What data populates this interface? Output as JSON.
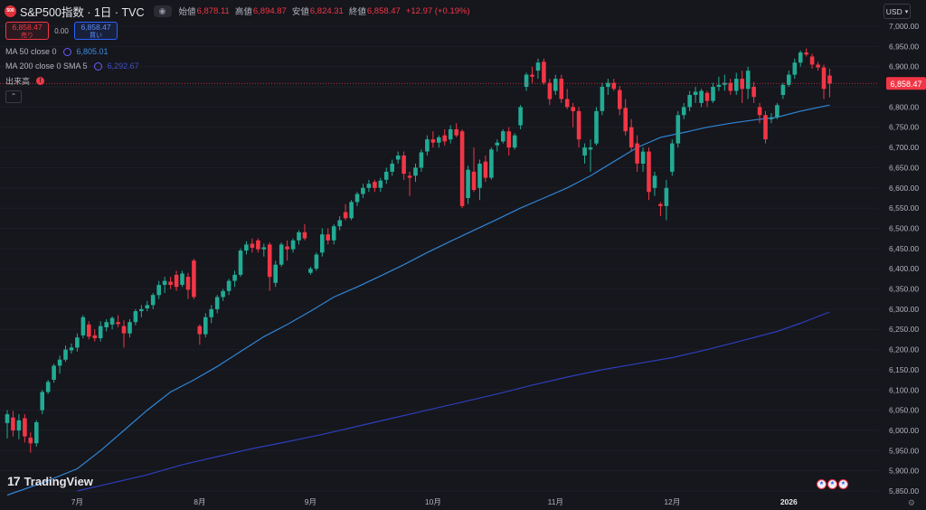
{
  "header": {
    "symbol": "S&P500指数 · 1日 · TVC",
    "logo_text": "500",
    "open_label": "始値",
    "open": "6,878.11",
    "high_label": "高値",
    "high": "6,894.87",
    "low_label": "安値",
    "low": "6,824.31",
    "close_label": "終値",
    "close": "6,858.47",
    "change": "+12.97 (+0.19%)"
  },
  "order": {
    "sell_price": "6,858.47",
    "sell_label": "売り",
    "spread": "0.00",
    "buy_price": "6,858.47",
    "buy_label": "買い"
  },
  "indicators": {
    "ma50_label": "MA 50 close 0",
    "ma50_value": "6,805.01",
    "ma200_label": "MA 200 close 0 SMA 5",
    "ma200_value": "6,292.67",
    "volume_label": "出来高",
    "volume_warning": "!"
  },
  "currency": "USD",
  "watermark": "TradingView",
  "colors": {
    "up": "#22ab94",
    "down": "#f23645",
    "ma50": "#2e86d6",
    "ma200": "#2c3fb8",
    "background": "#16161d",
    "last_price": "#f23645"
  },
  "chart_data": {
    "type": "candlestick",
    "y_axis_ticks": [
      "7,000.00",
      "6,950.00",
      "6,900.00",
      "6,850.00",
      "6,800.00",
      "6,750.00",
      "6,700.00",
      "6,650.00",
      "6,600.00",
      "6,550.00",
      "6,500.00",
      "6,450.00",
      "6,400.00",
      "6,350.00",
      "6,300.00",
      "6,250.00",
      "6,200.00",
      "6,150.00",
      "6,100.00",
      "6,050.00",
      "6,000.00",
      "5,950.00",
      "5,900.00",
      "5,850.00"
    ],
    "ylim": [
      5840,
      7015
    ],
    "x_axis_labels": [
      "7月",
      "8月",
      "9月",
      "10月",
      "11月",
      "12月",
      "2026"
    ],
    "x_label_index": [
      12,
      33,
      52,
      73,
      94,
      114,
      134
    ],
    "last_price_label": "6,858.47",
    "last_price": 6858.47,
    "candles": [
      {
        "o": 6018,
        "h": 6050,
        "l": 5980,
        "c": 6040
      },
      {
        "o": 6032,
        "h": 6048,
        "l": 5985,
        "c": 6000
      },
      {
        "o": 6000,
        "h": 6040,
        "l": 5978,
        "c": 6025
      },
      {
        "o": 6030,
        "h": 6040,
        "l": 5970,
        "c": 5985
      },
      {
        "o": 5982,
        "h": 5995,
        "l": 5945,
        "c": 5968
      },
      {
        "o": 5968,
        "h": 6025,
        "l": 5960,
        "c": 6020
      },
      {
        "o": 6050,
        "h": 6100,
        "l": 6040,
        "c": 6095
      },
      {
        "o": 6095,
        "h": 6125,
        "l": 6090,
        "c": 6120
      },
      {
        "o": 6125,
        "h": 6165,
        "l": 6118,
        "c": 6160
      },
      {
        "o": 6160,
        "h": 6185,
        "l": 6140,
        "c": 6175
      },
      {
        "o": 6175,
        "h": 6210,
        "l": 6170,
        "c": 6200
      },
      {
        "o": 6198,
        "h": 6215,
        "l": 6190,
        "c": 6205
      },
      {
        "o": 6205,
        "h": 6240,
        "l": 6195,
        "c": 6230
      },
      {
        "o": 6235,
        "h": 6285,
        "l": 6228,
        "c": 6280
      },
      {
        "o": 6262,
        "h": 6270,
        "l": 6225,
        "c": 6232
      },
      {
        "o": 6235,
        "h": 6250,
        "l": 6220,
        "c": 6228
      },
      {
        "o": 6228,
        "h": 6270,
        "l": 6220,
        "c": 6258
      },
      {
        "o": 6255,
        "h": 6275,
        "l": 6245,
        "c": 6268
      },
      {
        "o": 6262,
        "h": 6282,
        "l": 6250,
        "c": 6278
      },
      {
        "o": 6268,
        "h": 6285,
        "l": 6255,
        "c": 6263
      },
      {
        "o": 6258,
        "h": 6272,
        "l": 6205,
        "c": 6240
      },
      {
        "o": 6240,
        "h": 6275,
        "l": 6230,
        "c": 6268
      },
      {
        "o": 6268,
        "h": 6300,
        "l": 6260,
        "c": 6295
      },
      {
        "o": 6295,
        "h": 6310,
        "l": 6280,
        "c": 6300
      },
      {
        "o": 6302,
        "h": 6320,
        "l": 6295,
        "c": 6310
      },
      {
        "o": 6310,
        "h": 6340,
        "l": 6300,
        "c": 6335
      },
      {
        "o": 6335,
        "h": 6370,
        "l": 6325,
        "c": 6360
      },
      {
        "o": 6360,
        "h": 6380,
        "l": 6340,
        "c": 6370
      },
      {
        "o": 6368,
        "h": 6380,
        "l": 6350,
        "c": 6360
      },
      {
        "o": 6385,
        "h": 6395,
        "l": 6345,
        "c": 6355
      },
      {
        "o": 6360,
        "h": 6395,
        "l": 6355,
        "c": 6388
      },
      {
        "o": 6380,
        "h": 6390,
        "l": 6325,
        "c": 6348
      },
      {
        "o": 6420,
        "h": 6425,
        "l": 6325,
        "c": 6330
      },
      {
        "o": 6258,
        "h": 6262,
        "l": 6212,
        "c": 6238
      },
      {
        "o": 6238,
        "h": 6290,
        "l": 6230,
        "c": 6280
      },
      {
        "o": 6280,
        "h": 6310,
        "l": 6265,
        "c": 6300
      },
      {
        "o": 6300,
        "h": 6335,
        "l": 6290,
        "c": 6330
      },
      {
        "o": 6330,
        "h": 6350,
        "l": 6320,
        "c": 6345
      },
      {
        "o": 6345,
        "h": 6375,
        "l": 6335,
        "c": 6370
      },
      {
        "o": 6370,
        "h": 6395,
        "l": 6355,
        "c": 6385
      },
      {
        "o": 6385,
        "h": 6450,
        "l": 6380,
        "c": 6445
      },
      {
        "o": 6445,
        "h": 6468,
        "l": 6435,
        "c": 6460
      },
      {
        "o": 6462,
        "h": 6475,
        "l": 6440,
        "c": 6452
      },
      {
        "o": 6470,
        "h": 6475,
        "l": 6440,
        "c": 6448
      },
      {
        "o": 6448,
        "h": 6462,
        "l": 6430,
        "c": 6453
      },
      {
        "o": 6460,
        "h": 6465,
        "l": 6345,
        "c": 6380
      },
      {
        "o": 6365,
        "h": 6420,
        "l": 6355,
        "c": 6410
      },
      {
        "o": 6410,
        "h": 6465,
        "l": 6405,
        "c": 6460
      },
      {
        "o": 6455,
        "h": 6470,
        "l": 6420,
        "c": 6448
      },
      {
        "o": 6448,
        "h": 6475,
        "l": 6440,
        "c": 6470
      },
      {
        "o": 6470,
        "h": 6495,
        "l": 6460,
        "c": 6490
      },
      {
        "o": 6490,
        "h": 6510,
        "l": 6470,
        "c": 6475
      },
      {
        "o": 6390,
        "h": 6405,
        "l": 6385,
        "c": 6400
      },
      {
        "o": 6400,
        "h": 6440,
        "l": 6395,
        "c": 6435
      },
      {
        "o": 6440,
        "h": 6500,
        "l": 6430,
        "c": 6485
      },
      {
        "o": 6485,
        "h": 6500,
        "l": 6460,
        "c": 6470
      },
      {
        "o": 6470,
        "h": 6510,
        "l": 6460,
        "c": 6505
      },
      {
        "o": 6505,
        "h": 6530,
        "l": 6495,
        "c": 6520
      },
      {
        "o": 6540,
        "h": 6560,
        "l": 6520,
        "c": 6525
      },
      {
        "o": 6525,
        "h": 6570,
        "l": 6520,
        "c": 6565
      },
      {
        "o": 6565,
        "h": 6590,
        "l": 6555,
        "c": 6585
      },
      {
        "o": 6585,
        "h": 6610,
        "l": 6575,
        "c": 6600
      },
      {
        "o": 6600,
        "h": 6620,
        "l": 6590,
        "c": 6610
      },
      {
        "o": 6615,
        "h": 6620,
        "l": 6590,
        "c": 6600
      },
      {
        "o": 6600,
        "h": 6625,
        "l": 6590,
        "c": 6618
      },
      {
        "o": 6620,
        "h": 6650,
        "l": 6610,
        "c": 6640
      },
      {
        "o": 6640,
        "h": 6670,
        "l": 6630,
        "c": 6660
      },
      {
        "o": 6670,
        "h": 6690,
        "l": 6660,
        "c": 6680
      },
      {
        "o": 6680,
        "h": 6690,
        "l": 6620,
        "c": 6635
      },
      {
        "o": 6630,
        "h": 6640,
        "l": 6580,
        "c": 6625
      },
      {
        "o": 6630,
        "h": 6660,
        "l": 6615,
        "c": 6650
      },
      {
        "o": 6650,
        "h": 6695,
        "l": 6640,
        "c": 6688
      },
      {
        "o": 6690,
        "h": 6730,
        "l": 6680,
        "c": 6720
      },
      {
        "o": 6720,
        "h": 6740,
        "l": 6700,
        "c": 6712
      },
      {
        "o": 6712,
        "h": 6730,
        "l": 6700,
        "c": 6725
      },
      {
        "o": 6730,
        "h": 6745,
        "l": 6705,
        "c": 6715
      },
      {
        "o": 6720,
        "h": 6755,
        "l": 6710,
        "c": 6745
      },
      {
        "o": 6745,
        "h": 6760,
        "l": 6725,
        "c": 6730
      },
      {
        "o": 6740,
        "h": 6745,
        "l": 6550,
        "c": 6555
      },
      {
        "o": 6575,
        "h": 6655,
        "l": 6560,
        "c": 6645
      },
      {
        "o": 6640,
        "h": 6700,
        "l": 6590,
        "c": 6595
      },
      {
        "o": 6600,
        "h": 6670,
        "l": 6570,
        "c": 6660
      },
      {
        "o": 6665,
        "h": 6680,
        "l": 6615,
        "c": 6625
      },
      {
        "o": 6625,
        "h": 6700,
        "l": 6620,
        "c": 6695
      },
      {
        "o": 6705,
        "h": 6720,
        "l": 6690,
        "c": 6712
      },
      {
        "o": 6715,
        "h": 6745,
        "l": 6710,
        "c": 6740
      },
      {
        "o": 6740,
        "h": 6750,
        "l": 6680,
        "c": 6700
      },
      {
        "o": 6700,
        "h": 6735,
        "l": 6695,
        "c": 6730
      },
      {
        "o": 6755,
        "h": 6805,
        "l": 6745,
        "c": 6800
      },
      {
        "o": 6850,
        "h": 6885,
        "l": 6840,
        "c": 6880
      },
      {
        "o": 6880,
        "h": 6900,
        "l": 6860,
        "c": 6875
      },
      {
        "o": 6890,
        "h": 6920,
        "l": 6870,
        "c": 6910
      },
      {
        "o": 6912,
        "h": 6920,
        "l": 6855,
        "c": 6860
      },
      {
        "o": 6860,
        "h": 6870,
        "l": 6805,
        "c": 6820
      },
      {
        "o": 6840,
        "h": 6880,
        "l": 6830,
        "c": 6870
      },
      {
        "o": 6870,
        "h": 6880,
        "l": 6810,
        "c": 6820
      },
      {
        "o": 6820,
        "h": 6845,
        "l": 6795,
        "c": 6800
      },
      {
        "o": 6800,
        "h": 6810,
        "l": 6750,
        "c": 6790
      },
      {
        "o": 6790,
        "h": 6800,
        "l": 6700,
        "c": 6720
      },
      {
        "o": 6680,
        "h": 6710,
        "l": 6660,
        "c": 6700
      },
      {
        "o": 6695,
        "h": 6720,
        "l": 6640,
        "c": 6700
      },
      {
        "o": 6710,
        "h": 6800,
        "l": 6705,
        "c": 6790
      },
      {
        "o": 6790,
        "h": 6860,
        "l": 6780,
        "c": 6850
      },
      {
        "o": 6850,
        "h": 6870,
        "l": 6830,
        "c": 6860
      },
      {
        "o": 6860,
        "h": 6870,
        "l": 6840,
        "c": 6845
      },
      {
        "o": 6842,
        "h": 6852,
        "l": 6780,
        "c": 6795
      },
      {
        "o": 6798,
        "h": 6820,
        "l": 6730,
        "c": 6740
      },
      {
        "o": 6750,
        "h": 6770,
        "l": 6690,
        "c": 6700
      },
      {
        "o": 6710,
        "h": 6730,
        "l": 6640,
        "c": 6660
      },
      {
        "o": 6660,
        "h": 6700,
        "l": 6640,
        "c": 6690
      },
      {
        "o": 6690,
        "h": 6700,
        "l": 6570,
        "c": 6590
      },
      {
        "o": 6600,
        "h": 6640,
        "l": 6580,
        "c": 6630
      },
      {
        "o": 6560,
        "h": 6565,
        "l": 6530,
        "c": 6555
      },
      {
        "o": 6555,
        "h": 6620,
        "l": 6520,
        "c": 6600
      },
      {
        "o": 6640,
        "h": 6720,
        "l": 6630,
        "c": 6710
      },
      {
        "o": 6710,
        "h": 6790,
        "l": 6700,
        "c": 6780
      },
      {
        "o": 6780,
        "h": 6810,
        "l": 6770,
        "c": 6800
      },
      {
        "o": 6800,
        "h": 6840,
        "l": 6790,
        "c": 6830
      },
      {
        "o": 6830,
        "h": 6850,
        "l": 6810,
        "c": 6838
      },
      {
        "o": 6810,
        "h": 6845,
        "l": 6800,
        "c": 6840
      },
      {
        "o": 6835,
        "h": 6840,
        "l": 6800,
        "c": 6815
      },
      {
        "o": 6815,
        "h": 6860,
        "l": 6810,
        "c": 6850
      },
      {
        "o": 6850,
        "h": 6875,
        "l": 6840,
        "c": 6855
      },
      {
        "o": 6855,
        "h": 6880,
        "l": 6840,
        "c": 6860
      },
      {
        "o": 6860,
        "h": 6870,
        "l": 6830,
        "c": 6840
      },
      {
        "o": 6840,
        "h": 6885,
        "l": 6830,
        "c": 6870
      },
      {
        "o": 6870,
        "h": 6890,
        "l": 6810,
        "c": 6845
      },
      {
        "o": 6845,
        "h": 6900,
        "l": 6820,
        "c": 6890
      },
      {
        "o": 6850,
        "h": 6862,
        "l": 6810,
        "c": 6825
      },
      {
        "o": 6800,
        "h": 6810,
        "l": 6760,
        "c": 6780
      },
      {
        "o": 6780,
        "h": 6790,
        "l": 6710,
        "c": 6720
      },
      {
        "o": 6770,
        "h": 6785,
        "l": 6760,
        "c": 6773
      },
      {
        "o": 6775,
        "h": 6810,
        "l": 6770,
        "c": 6805
      },
      {
        "o": 6830,
        "h": 6860,
        "l": 6820,
        "c": 6855
      },
      {
        "o": 6855,
        "h": 6890,
        "l": 6850,
        "c": 6880
      },
      {
        "o": 6880,
        "h": 6920,
        "l": 6870,
        "c": 6910
      },
      {
        "o": 6910,
        "h": 6940,
        "l": 6900,
        "c": 6935
      },
      {
        "o": 6935,
        "h": 6945,
        "l": 6925,
        "c": 6930
      },
      {
        "o": 6925,
        "h": 6932,
        "l": 6895,
        "c": 6905
      },
      {
        "o": 6905,
        "h": 6912,
        "l": 6890,
        "c": 6898
      },
      {
        "o": 6898,
        "h": 6905,
        "l": 6820,
        "c": 6845
      },
      {
        "o": 6878,
        "h": 6895,
        "l": 6824,
        "c": 6858
      }
    ],
    "ma50": [
      [
        0,
        5840
      ],
      [
        6,
        5870
      ],
      [
        12,
        5905
      ],
      [
        16,
        5950
      ],
      [
        20,
        6000
      ],
      [
        24,
        6050
      ],
      [
        28,
        6095
      ],
      [
        32,
        6125
      ],
      [
        36,
        6158
      ],
      [
        40,
        6195
      ],
      [
        44,
        6232
      ],
      [
        48,
        6262
      ],
      [
        52,
        6295
      ],
      [
        56,
        6330
      ],
      [
        60,
        6355
      ],
      [
        64,
        6382
      ],
      [
        68,
        6410
      ],
      [
        72,
        6440
      ],
      [
        76,
        6468
      ],
      [
        80,
        6495
      ],
      [
        84,
        6522
      ],
      [
        88,
        6550
      ],
      [
        92,
        6575
      ],
      [
        96,
        6600
      ],
      [
        100,
        6630
      ],
      [
        104,
        6665
      ],
      [
        108,
        6700
      ],
      [
        112,
        6725
      ],
      [
        116,
        6737
      ],
      [
        120,
        6750
      ],
      [
        124,
        6760
      ],
      [
        128,
        6768
      ],
      [
        132,
        6775
      ],
      [
        136,
        6790
      ],
      [
        141,
        6805
      ]
    ],
    "ma200": [
      [
        12,
        5850
      ],
      [
        18,
        5870
      ],
      [
        24,
        5890
      ],
      [
        30,
        5915
      ],
      [
        36,
        5935
      ],
      [
        42,
        5955
      ],
      [
        48,
        5972
      ],
      [
        54,
        5990
      ],
      [
        60,
        6010
      ],
      [
        66,
        6030
      ],
      [
        72,
        6050
      ],
      [
        78,
        6070
      ],
      [
        84,
        6090
      ],
      [
        90,
        6112
      ],
      [
        96,
        6132
      ],
      [
        102,
        6150
      ],
      [
        108,
        6165
      ],
      [
        114,
        6180
      ],
      [
        120,
        6200
      ],
      [
        126,
        6222
      ],
      [
        132,
        6245
      ],
      [
        136,
        6265
      ],
      [
        141,
        6293
      ]
    ]
  }
}
